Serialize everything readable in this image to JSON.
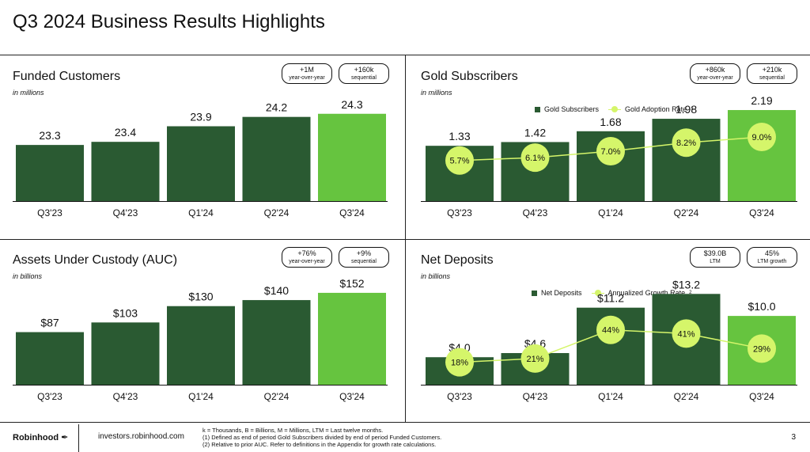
{
  "page": {
    "title": "Q3 2024 Business Results Highlights",
    "page_number": "3"
  },
  "colors": {
    "dark_green": "#2a5a32",
    "bright_green": "#66c43f",
    "lime": "#d5f56a"
  },
  "panels": [
    {
      "title": "Funded Customers",
      "unit": "in millions",
      "badges": [
        {
          "value": "+1M",
          "sub": "year-over-year"
        },
        {
          "value": "+160k",
          "sub": "sequential"
        }
      ]
    },
    {
      "title": "Gold Subscribers",
      "unit": "in millions",
      "badges": [
        {
          "value": "+860k",
          "sub": "year-over-year"
        },
        {
          "value": "+210k",
          "sub": "sequential"
        }
      ],
      "legend": {
        "bar": "Gold Subscribers",
        "line": "Gold Adoption Rate",
        "line_note": "1"
      }
    },
    {
      "title": "Assets Under Custody (AUC)",
      "unit": "in billions",
      "badges": [
        {
          "value": "+76%",
          "sub": "year-over-year"
        },
        {
          "value": "+9%",
          "sub": "sequential"
        }
      ]
    },
    {
      "title": "Net Deposits",
      "unit": "in billions",
      "badges": [
        {
          "value": "$39.0B",
          "sub": "LTM"
        },
        {
          "value": "45%",
          "sub": "LTM growth"
        }
      ],
      "legend": {
        "bar": "Net Deposits",
        "line": "Annualized Growth Rate",
        "line_note": "2"
      }
    }
  ],
  "chart_data": [
    {
      "type": "bar",
      "title": "Funded Customers",
      "categories": [
        "Q3'23",
        "Q4'23",
        "Q1'24",
        "Q2'24",
        "Q3'24"
      ],
      "values": [
        23.3,
        23.4,
        23.9,
        24.2,
        24.3
      ],
      "labels": [
        "23.3",
        "23.4",
        "23.9",
        "24.2",
        "24.3"
      ],
      "ylim": [
        21.5,
        24.7
      ]
    },
    {
      "type": "bar",
      "title": "Gold Subscribers",
      "categories": [
        "Q3'23",
        "Q4'23",
        "Q1'24",
        "Q2'24",
        "Q3'24"
      ],
      "values": [
        1.33,
        1.42,
        1.68,
        1.98,
        2.19
      ],
      "labels": [
        "1.33",
        "1.42",
        "1.68",
        "1.98",
        "2.19"
      ],
      "ylim": [
        0,
        2.4
      ],
      "line": {
        "name": "Gold Adoption Rate",
        "values": [
          5.7,
          6.1,
          7.0,
          8.2,
          9.0
        ],
        "labels": [
          "5.7%",
          "6.1%",
          "7.0%",
          "8.2%",
          "9.0%"
        ],
        "ylim": [
          0,
          14
        ]
      }
    },
    {
      "type": "bar",
      "title": "Assets Under Custody (AUC)",
      "categories": [
        "Q3'23",
        "Q4'23",
        "Q1'24",
        "Q2'24",
        "Q3'24"
      ],
      "values": [
        87,
        103,
        130,
        140,
        152
      ],
      "labels": [
        "$87",
        "$103",
        "$130",
        "$140",
        "$152"
      ],
      "ylim": [
        0,
        165
      ]
    },
    {
      "type": "bar",
      "title": "Net Deposits",
      "categories": [
        "Q3'23",
        "Q4'23",
        "Q1'24",
        "Q2'24",
        "Q3'24"
      ],
      "values": [
        4.0,
        4.6,
        11.2,
        13.2,
        10.0
      ],
      "labels": [
        "$4.0",
        "$4.6",
        "$11.2",
        "$13.2",
        "$10.0"
      ],
      "ylim": [
        0,
        14.5
      ],
      "line": {
        "name": "Annualized Growth Rate",
        "values": [
          18,
          21,
          44,
          41,
          29
        ],
        "labels": [
          "18%",
          "21%",
          "44%",
          "41%",
          "29%"
        ],
        "ylim": [
          0,
          80
        ]
      }
    }
  ],
  "footer": {
    "logo": "Robinhood",
    "url": "investors.robinhood.com",
    "notes": [
      "k = Thousands, B = Billions, M = Millions, LTM = Last twelve months.",
      "(1) Defined as end of period Gold Subscribers divided by end of period Funded Customers.",
      "(2) Relative to prior AUC. Refer to definitions in the Appendix for growth rate calculations."
    ]
  }
}
